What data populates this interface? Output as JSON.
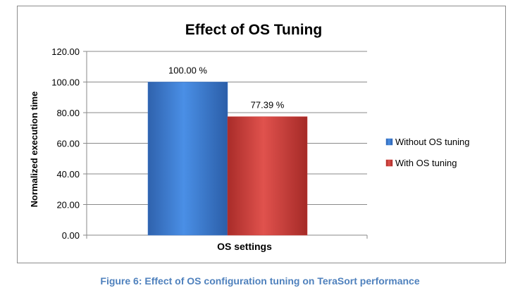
{
  "chart_data": {
    "type": "bar",
    "title": "Effect of OS Tuning",
    "xlabel": "OS settings",
    "ylabel": "Normalized execution time",
    "ylim": [
      0,
      120
    ],
    "yticks": [
      "0.00",
      "20.00",
      "40.00",
      "60.00",
      "80.00",
      "100.00",
      "120.00"
    ],
    "grid": true,
    "legend_position": "right",
    "categories": [
      "OS settings"
    ],
    "series": [
      {
        "name": "Without OS tuning",
        "values": [
          100.0
        ],
        "data_label": "100.00 %",
        "color": "#3c7bd1"
      },
      {
        "name": "With OS tuning",
        "values": [
          77.39
        ],
        "data_label": "77.39 %",
        "color": "#cc3b37"
      }
    ]
  },
  "caption": "Figure 6: Effect of OS configuration tuning on TeraSort performance"
}
